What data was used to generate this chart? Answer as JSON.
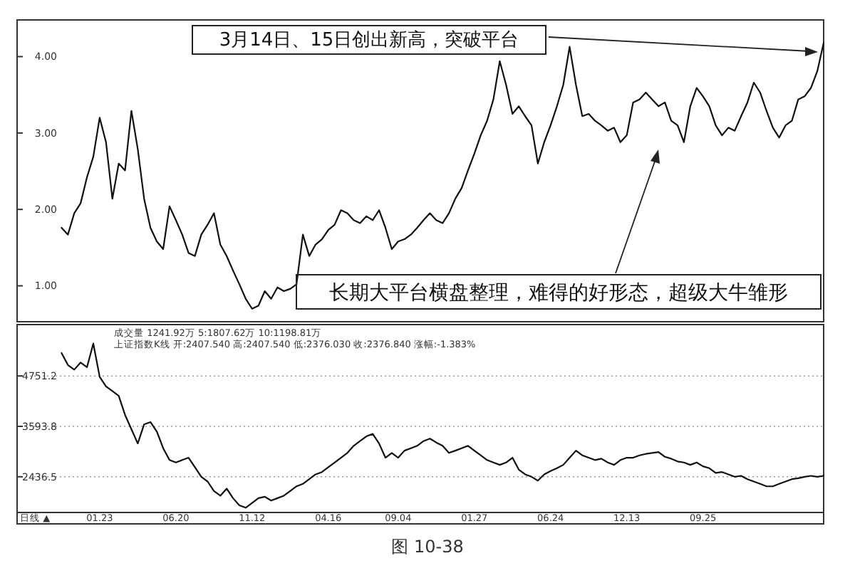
{
  "chart_data": [
    {
      "type": "line",
      "tick_labels": "y",
      "ylim": [
        0.53,
        4.48
      ],
      "yticks": [
        {
          "value": 1,
          "label": "1.00"
        },
        {
          "value": 2,
          "label": "2.00"
        },
        {
          "value": 3,
          "label": "3.00"
        },
        {
          "value": 4,
          "label": "4.00"
        }
      ],
      "categories": [
        null,
        null,
        null,
        null,
        null,
        null,
        null,
        null,
        null,
        null,
        null,
        null,
        null,
        null,
        null,
        null,
        null,
        null,
        null,
        null,
        null,
        null,
        null,
        null,
        null,
        null,
        null,
        null,
        null,
        null,
        null,
        null,
        null,
        null,
        null,
        null,
        null,
        null,
        null,
        null,
        null,
        null,
        null,
        null,
        null,
        null,
        null,
        null,
        null,
        null,
        null,
        null,
        null,
        null,
        null,
        null,
        null,
        null,
        null,
        null,
        null,
        null,
        null,
        null,
        null,
        null,
        null,
        null,
        null,
        null,
        null,
        null,
        null,
        null,
        null,
        null,
        null,
        null,
        null,
        null,
        null,
        null,
        null,
        null,
        null,
        null,
        null,
        null,
        null,
        null,
        null,
        null,
        null,
        null,
        null,
        null,
        null,
        null,
        null,
        null,
        null,
        null,
        null,
        null,
        null,
        null,
        null,
        null,
        null,
        null,
        null,
        null,
        null,
        null,
        null,
        null,
        null,
        null,
        null,
        null,
        null,
        null,
        null,
        null,
        null,
        null,
        null,
        null
      ],
      "series": [
        {
          "color": "#111111",
          "values": [
            null,
            null,
            null,
            null,
            null,
            null,
            null,
            1.76,
            1.67,
            1.95,
            2.08,
            2.42,
            2.69,
            3.2,
            2.88,
            2.14,
            2.6,
            2.51,
            3.29,
            2.79,
            2.14,
            1.76,
            1.58,
            1.48,
            2.04,
            1.86,
            1.67,
            1.43,
            1.39,
            1.67,
            1.8,
            1.95,
            1.54,
            1.39,
            1.2,
            1.02,
            0.83,
            0.7,
            0.74,
            0.93,
            0.83,
            0.98,
            0.93,
            0.96,
            1.02,
            1.67,
            1.39,
            1.54,
            1.61,
            1.73,
            1.8,
            1.99,
            1.95,
            1.86,
            1.82,
            1.91,
            1.86,
            1.99,
            1.76,
            1.48,
            1.58,
            1.61,
            1.67,
            1.76,
            1.86,
            1.95,
            1.86,
            1.82,
            1.95,
            2.14,
            2.28,
            2.51,
            2.73,
            2.97,
            3.16,
            3.44,
            3.94,
            3.63,
            3.25,
            3.35,
            3.22,
            3.1,
            2.6,
            2.88,
            3.1,
            3.35,
            3.63,
            4.13,
            3.63,
            3.22,
            3.25,
            3.16,
            3.1,
            3.03,
            3.07,
            2.88,
            2.97,
            3.4,
            3.44,
            3.53,
            3.44,
            3.35,
            3.4,
            3.16,
            3.1,
            2.88,
            3.35,
            3.59,
            3.48,
            3.35,
            3.1,
            2.97,
            3.07,
            3.03,
            3.22,
            3.4,
            3.66,
            3.53,
            3.29,
            3.07,
            2.94,
            3.1,
            3.16,
            3.44,
            3.48,
            3.59,
            3.81,
            4.18
          ]
        }
      ],
      "annotations": [
        "3月14日、15日创出新高，突破平台",
        "长期大平台横盘整理，难得的好形态，超级大牛雏形"
      ]
    },
    {
      "type": "line",
      "grid": "y",
      "ylim": [
        1616,
        5931
      ],
      "yticks": [
        2436.5,
        3593.8,
        4751.2
      ],
      "categories": [
        null,
        null,
        null,
        null,
        null,
        null,
        null,
        null,
        null,
        null,
        null,
        null,
        null,
        "01.23",
        null,
        null,
        null,
        null,
        null,
        null,
        null,
        null,
        null,
        null,
        null,
        "06.20",
        null,
        null,
        null,
        null,
        null,
        null,
        null,
        null,
        null,
        null,
        null,
        "11.12",
        null,
        null,
        null,
        null,
        null,
        null,
        null,
        null,
        null,
        null,
        null,
        "04.16",
        null,
        null,
        null,
        null,
        null,
        null,
        null,
        null,
        null,
        null,
        "09.04",
        null,
        null,
        null,
        null,
        null,
        null,
        null,
        null,
        null,
        null,
        null,
        "01.27",
        null,
        null,
        null,
        null,
        null,
        null,
        null,
        null,
        null,
        null,
        null,
        "06.24",
        null,
        null,
        null,
        null,
        null,
        null,
        null,
        null,
        null,
        null,
        null,
        "12.13",
        null,
        null,
        null,
        null,
        null,
        null,
        null,
        null,
        null,
        null,
        null,
        "09.25",
        null,
        null,
        null,
        null,
        null,
        null,
        null,
        null,
        null,
        null,
        null,
        null,
        null,
        null,
        null,
        null,
        null,
        null,
        null
      ],
      "series": [
        {
          "color": "#111111",
          "values": [
            null,
            null,
            null,
            null,
            null,
            null,
            null,
            5278,
            5003,
            4895,
            5059,
            4951,
            5495,
            4731,
            4511,
            4403,
            4295,
            3856,
            3528,
            3200,
            3640,
            3692,
            3475,
            3092,
            2820,
            2764,
            2820,
            2874,
            2655,
            2436,
            2327,
            2109,
            2001,
            2164,
            1945,
            1781,
            1725,
            1836,
            1945,
            1978,
            1889,
            1945,
            2001,
            2109,
            2217,
            2273,
            2381,
            2491,
            2545,
            2655,
            2764,
            2874,
            2984,
            3148,
            3256,
            3364,
            3420,
            3200,
            2874,
            2984,
            2874,
            3036,
            3092,
            3148,
            3256,
            3311,
            3223,
            3148,
            2984,
            3036,
            3092,
            3148,
            3036,
            2928,
            2820,
            2764,
            2709,
            2764,
            2874,
            2600,
            2491,
            2436,
            2348,
            2491,
            2567,
            2633,
            2709,
            2874,
            3036,
            2928,
            2874,
            2820,
            2852,
            2764,
            2709,
            2820,
            2874,
            2874,
            2928,
            2961,
            2984,
            3003,
            2895,
            2852,
            2787,
            2764,
            2709,
            2764,
            2676,
            2633,
            2524,
            2545,
            2491,
            2436,
            2458,
            2381,
            2327,
            2273,
            2217,
            2217,
            2273,
            2327,
            2381,
            2403,
            2436,
            2458,
            2436,
            2458
          ]
        }
      ],
      "annotations": [
        "成交量 1241.92万 5:1807.62万 10:1198.81万",
        "上证指数K线 开:2407.540 高:2407.540 低:2376.030 收:2376.840 涨幅:-1.383%",
        "日线 ▲",
        "图 10-38"
      ]
    }
  ]
}
